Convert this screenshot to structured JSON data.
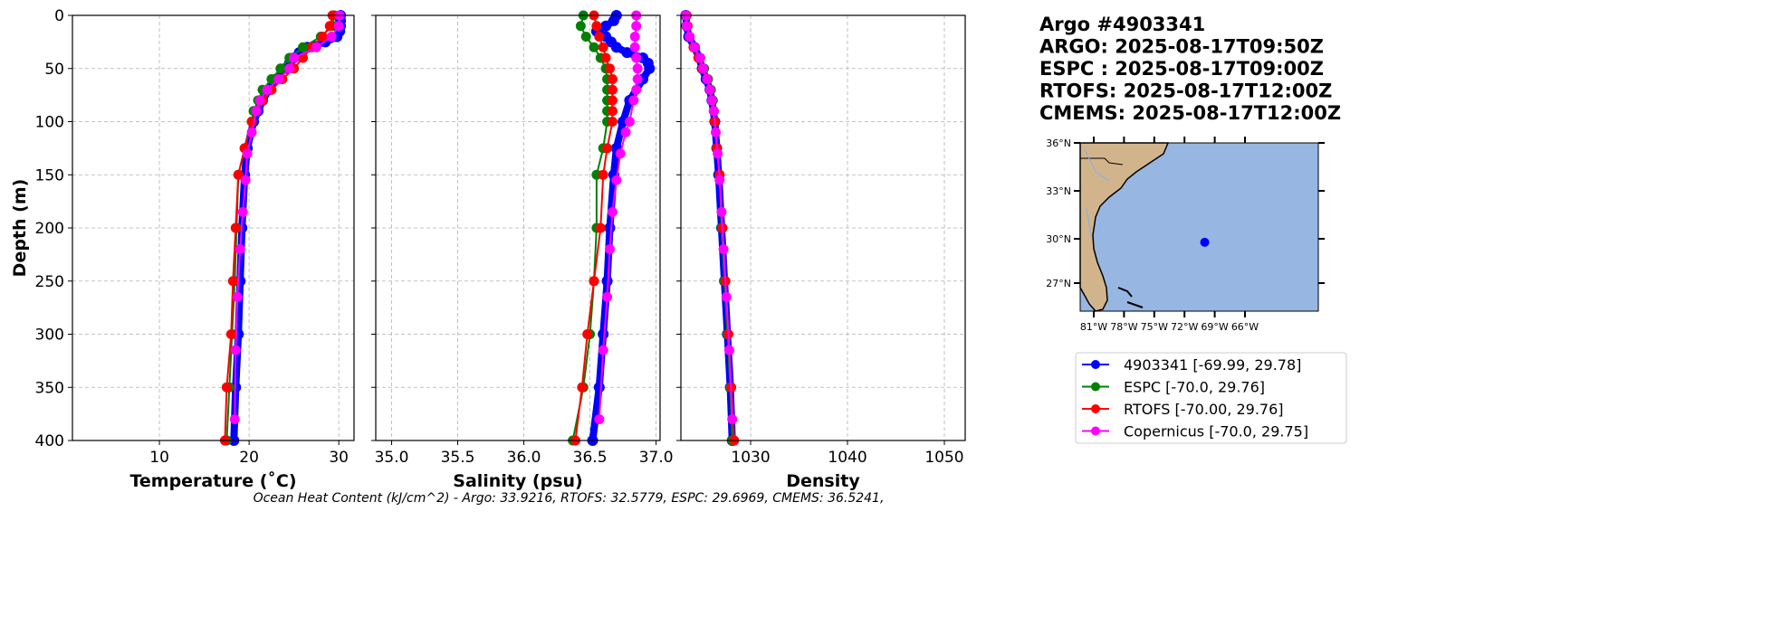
{
  "chart_data": {
    "type": "line",
    "title_lines": [
      "Argo #4903341",
      "ARGO: 2025-08-17T09:50Z",
      "ESPC : 2025-08-17T09:00Z",
      "RTOFS: 2025-08-17T12:00Z",
      "CMEMS: 2025-08-17T12:00Z"
    ],
    "ylabel": "Depth (m)",
    "ylim": [
      400,
      0
    ],
    "yticks": [
      0,
      50,
      100,
      150,
      200,
      250,
      300,
      350,
      400
    ],
    "footer": "Ocean Heat Content (kJ/cm^2) - Argo: 33.9216,  RTOFS: 32.5779,  ESPC: 29.6969,  CMEMS: 36.5241,",
    "series_styles": [
      {
        "name": "4903341 [-69.99, 29.78]",
        "color": "#0000ff"
      },
      {
        "name": "ESPC [-70.0, 29.76]",
        "color": "#008000"
      },
      {
        "name": "RTOFS [-70.00, 29.76]",
        "color": "#ff0000"
      },
      {
        "name": "Copernicus [-70.0, 29.75]",
        "color": "#ff00ff"
      }
    ],
    "panels": [
      {
        "xlabel": "Temperature (˚C)",
        "xlim": [
          0.3,
          31.7
        ],
        "xticks": [
          10,
          20,
          30
        ],
        "xtick_labels": [
          "10",
          "20",
          "30"
        ],
        "series": [
          {
            "depth": [
              0,
              5,
              10,
              15,
              20,
              25,
              30,
              35,
              40,
              45,
              50,
              60,
              70,
              80,
              90,
              100,
              125,
              150,
              200,
              250,
              300,
              350,
              400
            ],
            "values": [
              30.2,
              30.2,
              30.2,
              30.1,
              29.8,
              28.5,
              26.5,
              25.6,
              25.0,
              24.5,
              24.0,
              23.0,
              22.2,
              21.5,
              21.0,
              20.5,
              19.8,
              19.5,
              19.2,
              19.0,
              18.8,
              18.5,
              18.3
            ]
          },
          {
            "depth": [
              0,
              10,
              20,
              30,
              40,
              50,
              60,
              70,
              80,
              90,
              100,
              125,
              150,
              200,
              250,
              300,
              350,
              400
            ],
            "values": [
              29.5,
              29.3,
              28.0,
              26.0,
              24.5,
              23.5,
              22.5,
              21.5,
              21.0,
              20.5,
              20.3,
              19.5,
              18.8,
              18.6,
              18.4,
              18.1,
              17.8,
              17.5
            ]
          },
          {
            "depth": [
              0,
              10,
              20,
              30,
              40,
              50,
              60,
              70,
              80,
              100,
              125,
              150,
              200,
              250,
              300,
              350,
              400
            ],
            "values": [
              29.3,
              29.0,
              28.2,
              27.0,
              26.0,
              25.0,
              23.7,
              22.5,
              21.5,
              20.3,
              19.5,
              18.8,
              18.5,
              18.2,
              18.0,
              17.5,
              17.3
            ]
          },
          {
            "depth": [
              0,
              10,
              20,
              30,
              40,
              50,
              60,
              70,
              80,
              90,
              110,
              130,
              155,
              185,
              220,
              265,
              315,
              380
            ],
            "values": [
              30.1,
              30.0,
              29.2,
              27.5,
              25.0,
              24.5,
              23.3,
              22.0,
              21.2,
              20.8,
              20.3,
              19.8,
              19.6,
              19.3,
              19.0,
              18.7,
              18.5,
              18.4
            ]
          }
        ]
      },
      {
        "xlabel": "Salinity (psu)",
        "xlim": [
          34.88,
          37.03
        ],
        "xticks": [
          35.0,
          35.5,
          36.0,
          36.5,
          37.0
        ],
        "xtick_labels": [
          "35.0",
          "35.5",
          "36.0",
          "36.5",
          "37.0"
        ],
        "series": [
          {
            "depth": [
              0,
              5,
              10,
              15,
              20,
              25,
              30,
              35,
              40,
              45,
              50,
              60,
              80,
              100,
              125,
              150,
              200,
              250,
              300,
              350,
              400
            ],
            "values": [
              36.7,
              36.68,
              36.62,
              36.55,
              36.62,
              36.66,
              36.7,
              36.78,
              36.9,
              36.94,
              36.95,
              36.9,
              36.8,
              36.75,
              36.7,
              36.68,
              36.65,
              36.63,
              36.6,
              36.57,
              36.52
            ]
          },
          {
            "depth": [
              0,
              10,
              20,
              30,
              40,
              50,
              60,
              70,
              80,
              90,
              100,
              125,
              150,
              200,
              250,
              300,
              350,
              400
            ],
            "values": [
              36.45,
              36.43,
              36.47,
              36.53,
              36.58,
              36.62,
              36.63,
              36.63,
              36.63,
              36.63,
              36.63,
              36.6,
              36.55,
              36.55,
              36.53,
              36.5,
              36.45,
              36.37
            ]
          },
          {
            "depth": [
              0,
              10,
              20,
              30,
              40,
              50,
              60,
              70,
              80,
              90,
              100,
              125,
              150,
              200,
              250,
              300,
              350,
              400
            ],
            "values": [
              36.53,
              36.55,
              36.57,
              36.6,
              36.62,
              36.65,
              36.67,
              36.67,
              36.67,
              36.67,
              36.67,
              36.63,
              36.6,
              36.58,
              36.53,
              36.48,
              36.44,
              36.39
            ]
          },
          {
            "depth": [
              0,
              10,
              20,
              30,
              40,
              50,
              60,
              70,
              80,
              100,
              110,
              130,
              155,
              185,
              220,
              265,
              315,
              380
            ],
            "values": [
              36.85,
              36.85,
              36.84,
              36.84,
              36.85,
              36.86,
              36.86,
              36.85,
              36.83,
              36.8,
              36.77,
              36.73,
              36.7,
              36.67,
              36.65,
              36.63,
              36.6,
              36.57
            ]
          }
        ]
      },
      {
        "xlabel": "Density",
        "xlim": [
          1022.8,
          1052.15
        ],
        "xticks": [
          1030,
          1040,
          1050
        ],
        "xtick_labels": [
          "1030",
          "1040",
          "1050"
        ],
        "series": [
          {
            "depth": [
              0,
              10,
              20,
              30,
              40,
              50,
              60,
              70,
              80,
              100,
              125,
              150,
              200,
              250,
              300,
              350,
              400
            ],
            "values": [
              1023.3,
              1023.4,
              1023.6,
              1024.2,
              1024.7,
              1025.0,
              1025.4,
              1025.8,
              1026.0,
              1026.3,
              1026.5,
              1026.7,
              1027.0,
              1027.3,
              1027.6,
              1027.9,
              1028.1
            ]
          },
          {
            "depth": [
              0,
              10,
              20,
              30,
              40,
              50,
              60,
              70,
              80,
              90,
              100,
              125,
              150,
              200,
              250,
              300,
              350,
              400
            ],
            "values": [
              1023.3,
              1023.4,
              1023.7,
              1024.2,
              1024.8,
              1025.2,
              1025.6,
              1025.9,
              1026.1,
              1026.2,
              1026.3,
              1026.5,
              1026.8,
              1027.0,
              1027.3,
              1027.6,
              1027.9,
              1028.1
            ]
          },
          {
            "depth": [
              0,
              10,
              20,
              30,
              40,
              50,
              60,
              70,
              80,
              90,
              100,
              125,
              150,
              200,
              250,
              300,
              350,
              400
            ],
            "values": [
              1023.4,
              1023.5,
              1023.7,
              1024.1,
              1024.6,
              1025.0,
              1025.5,
              1025.8,
              1026.0,
              1026.2,
              1026.3,
              1026.5,
              1026.8,
              1027.1,
              1027.4,
              1027.7,
              1028.0,
              1028.3
            ]
          },
          {
            "depth": [
              0,
              10,
              20,
              30,
              40,
              50,
              60,
              70,
              80,
              90,
              110,
              130,
              155,
              185,
              220,
              265,
              315,
              380
            ],
            "values": [
              1023.3,
              1023.4,
              1023.7,
              1024.2,
              1024.8,
              1025.1,
              1025.5,
              1025.8,
              1026.0,
              1026.2,
              1026.4,
              1026.6,
              1026.8,
              1027.0,
              1027.2,
              1027.5,
              1027.8,
              1028.1
            ]
          }
        ]
      }
    ],
    "map": {
      "lat_ticks": [
        "36°N",
        "33°N",
        "30°N",
        "27°N"
      ],
      "lon_ticks": [
        "81°W",
        "78°W",
        "75°W",
        "72°W",
        "69°W",
        "66°W"
      ],
      "float_position": {
        "lon": -69.99,
        "lat": 29.78
      },
      "land_color": "#d2b48c",
      "ocean_color": "#97b6e1"
    }
  }
}
